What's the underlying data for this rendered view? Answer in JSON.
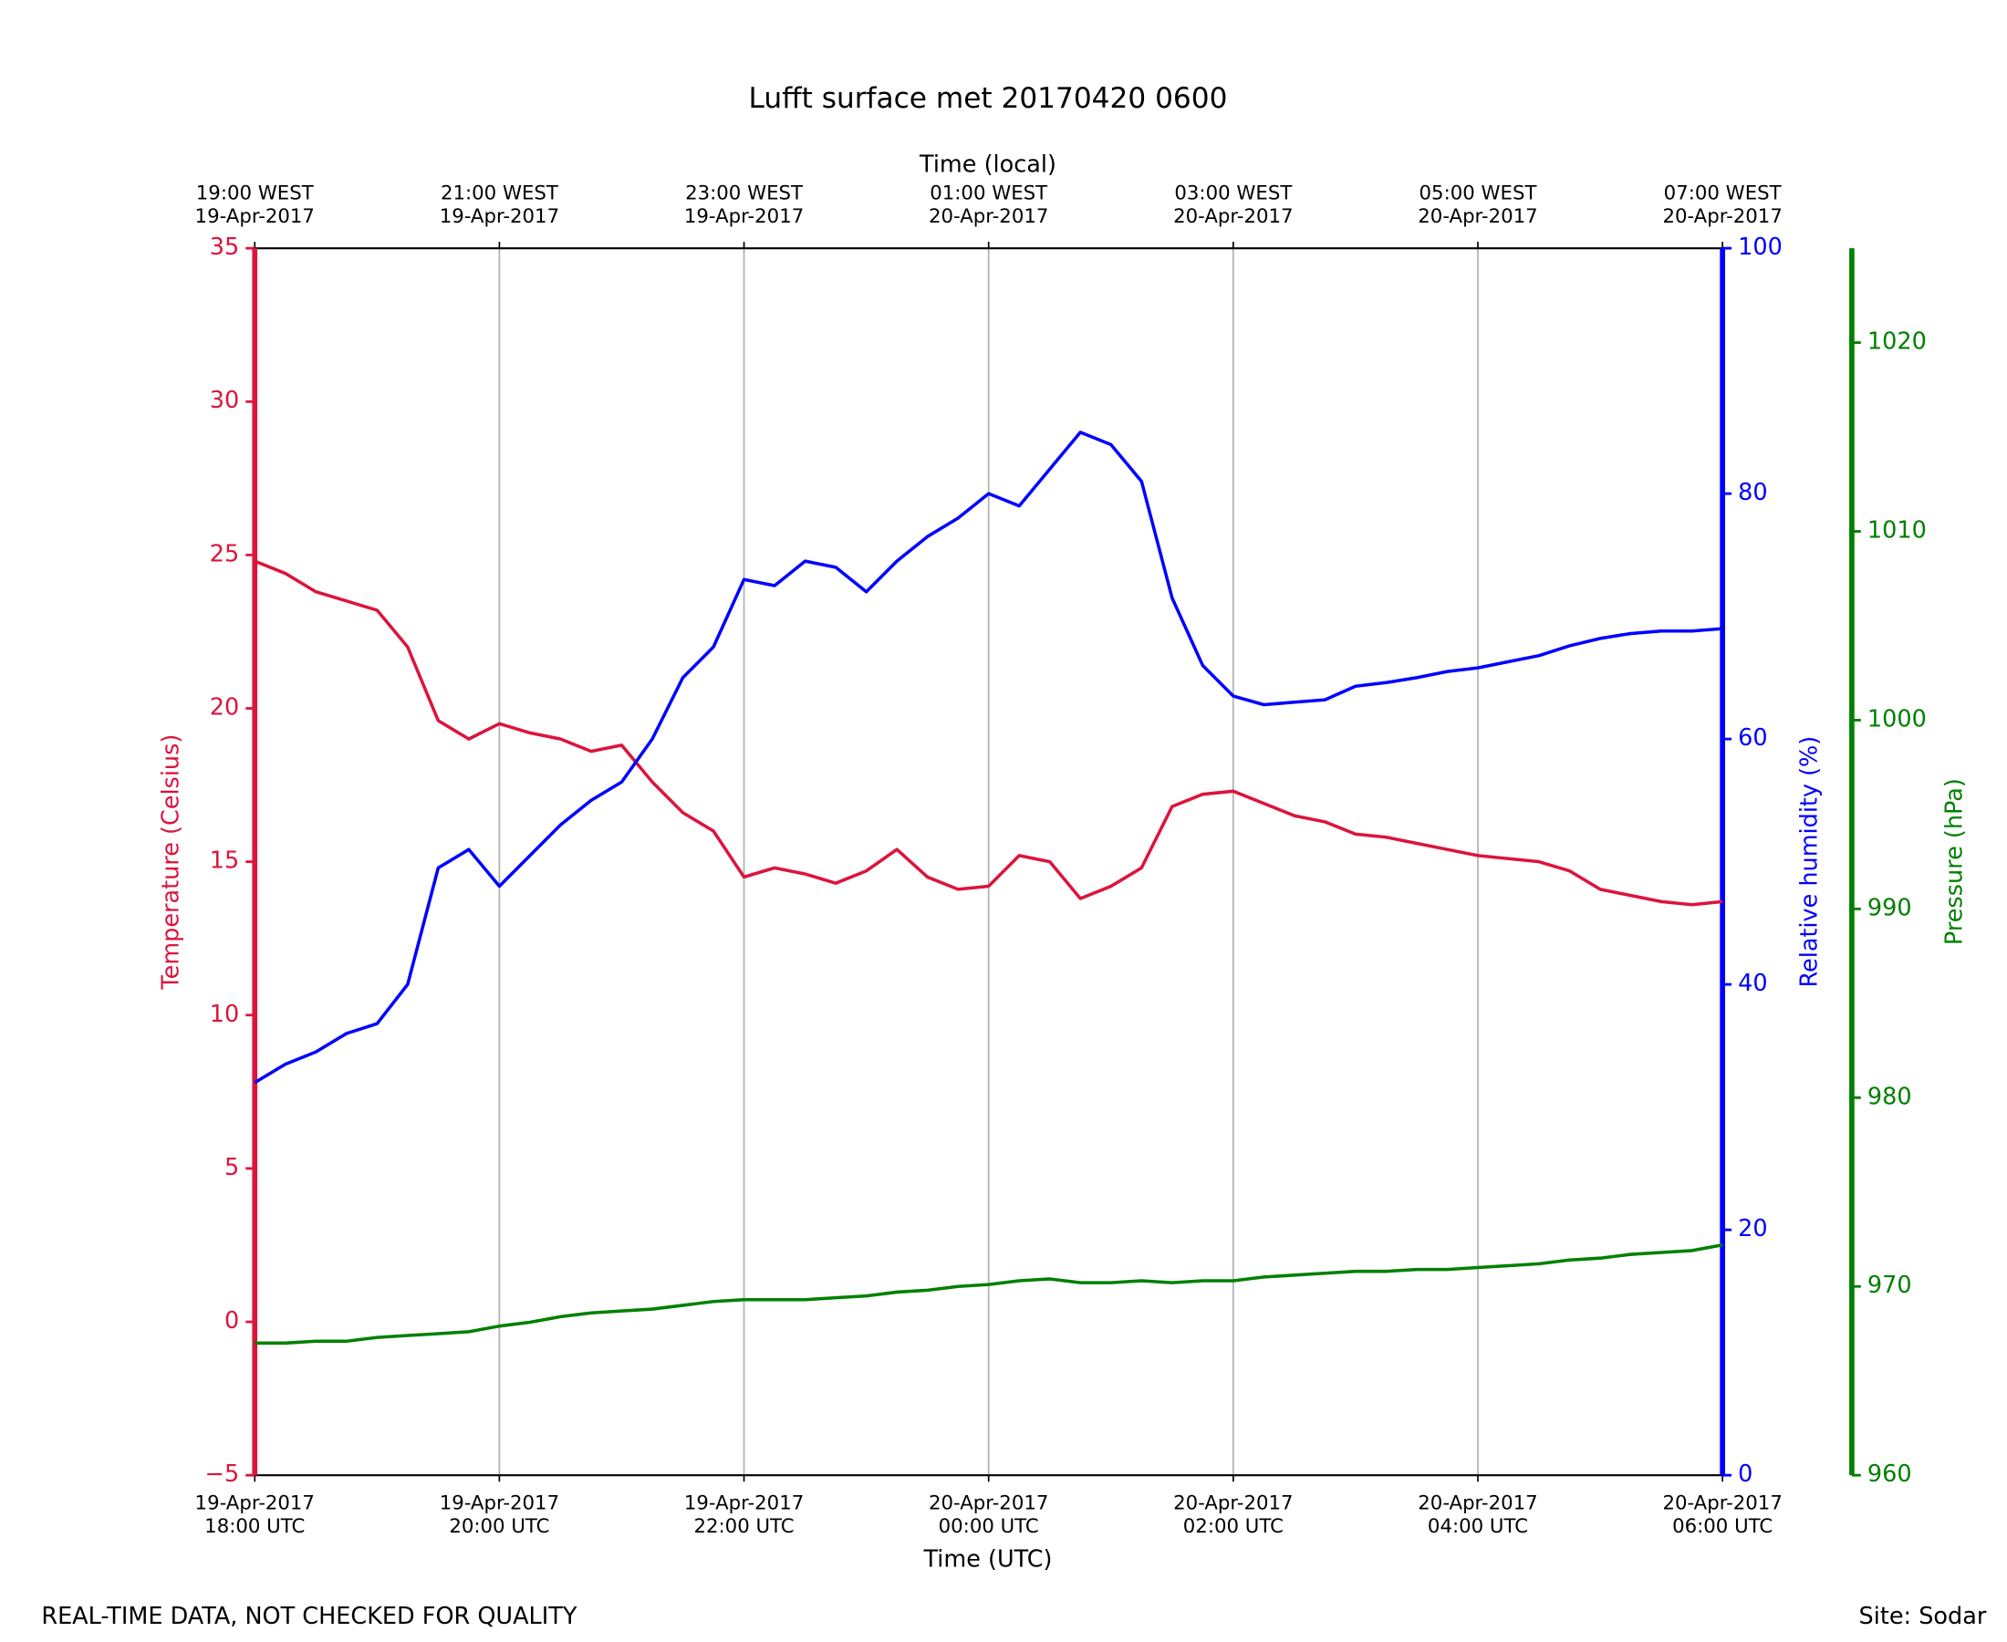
{
  "chart_data": {
    "type": "line",
    "title": "Lufft surface met 20170420 0600",
    "xlabel": "Time (UTC)",
    "x2label": "Time (local)",
    "ylabel": "Temperature (Celsius)",
    "y2label": "Relative humidity (%)",
    "y3label": "Pressure (hPa)",
    "footer_left": "REAL-TIME DATA, NOT CHECKED FOR QUALITY",
    "footer_right": "Site: Sodar",
    "grid": true,
    "x": [
      "2017-04-19T18:00Z",
      "2017-04-19T18:15Z",
      "2017-04-19T18:30Z",
      "2017-04-19T18:45Z",
      "2017-04-19T19:00Z",
      "2017-04-19T19:15Z",
      "2017-04-19T19:30Z",
      "2017-04-19T19:45Z",
      "2017-04-19T20:00Z",
      "2017-04-19T20:15Z",
      "2017-04-19T20:30Z",
      "2017-04-19T20:45Z",
      "2017-04-19T21:00Z",
      "2017-04-19T21:15Z",
      "2017-04-19T21:30Z",
      "2017-04-19T21:45Z",
      "2017-04-19T22:00Z",
      "2017-04-19T22:15Z",
      "2017-04-19T22:30Z",
      "2017-04-19T22:45Z",
      "2017-04-19T23:00Z",
      "2017-04-19T23:15Z",
      "2017-04-19T23:30Z",
      "2017-04-19T23:45Z",
      "2017-04-20T00:00Z",
      "2017-04-20T00:15Z",
      "2017-04-20T00:30Z",
      "2017-04-20T00:45Z",
      "2017-04-20T01:00Z",
      "2017-04-20T01:15Z",
      "2017-04-20T01:30Z",
      "2017-04-20T01:45Z",
      "2017-04-20T02:00Z",
      "2017-04-20T02:15Z",
      "2017-04-20T02:30Z",
      "2017-04-20T02:45Z",
      "2017-04-20T03:00Z",
      "2017-04-20T03:15Z",
      "2017-04-20T03:30Z",
      "2017-04-20T03:45Z",
      "2017-04-20T04:00Z",
      "2017-04-20T04:15Z",
      "2017-04-20T04:30Z",
      "2017-04-20T04:45Z",
      "2017-04-20T05:00Z",
      "2017-04-20T05:15Z",
      "2017-04-20T05:30Z",
      "2017-04-20T05:45Z",
      "2017-04-20T06:00Z"
    ],
    "xlim": [
      "2017-04-19T18:00Z",
      "2017-04-20T06:00Z"
    ],
    "xticks": [
      {
        "value": "2017-04-19T18:00Z",
        "label": "19-Apr-2017\n18:00 UTC"
      },
      {
        "value": "2017-04-19T20:00Z",
        "label": "19-Apr-2017\n20:00 UTC"
      },
      {
        "value": "2017-04-19T22:00Z",
        "label": "19-Apr-2017\n22:00 UTC"
      },
      {
        "value": "2017-04-20T00:00Z",
        "label": "20-Apr-2017\n00:00 UTC"
      },
      {
        "value": "2017-04-20T02:00Z",
        "label": "20-Apr-2017\n02:00 UTC"
      },
      {
        "value": "2017-04-20T04:00Z",
        "label": "20-Apr-2017\n04:00 UTC"
      },
      {
        "value": "2017-04-20T06:00Z",
        "label": "20-Apr-2017\n06:00 UTC"
      }
    ],
    "x2ticks": [
      {
        "value": "2017-04-19T18:00Z",
        "label": "19:00 WEST\n19-Apr-2017"
      },
      {
        "value": "2017-04-19T20:00Z",
        "label": "21:00 WEST\n19-Apr-2017"
      },
      {
        "value": "2017-04-19T22:00Z",
        "label": "23:00 WEST\n19-Apr-2017"
      },
      {
        "value": "2017-04-20T00:00Z",
        "label": "01:00 WEST\n20-Apr-2017"
      },
      {
        "value": "2017-04-20T02:00Z",
        "label": "03:00 WEST\n20-Apr-2017"
      },
      {
        "value": "2017-04-20T04:00Z",
        "label": "05:00 WEST\n20-Apr-2017"
      },
      {
        "value": "2017-04-20T06:00Z",
        "label": "07:00 WEST\n20-Apr-2017"
      }
    ],
    "ylim": [
      -5,
      35
    ],
    "yticks": [
      {
        "value": -5,
        "label": "−5"
      },
      0,
      5,
      10,
      15,
      20,
      25,
      30,
      35
    ],
    "y2lim": [
      0,
      100
    ],
    "y2ticks": [
      0,
      20,
      40,
      60,
      80,
      100
    ],
    "y3lim": [
      960,
      1025
    ],
    "y3ticks": [
      960,
      970,
      980,
      990,
      1000,
      1010,
      1020
    ],
    "ycolor": "#dc143c",
    "y2color": "#0000ff",
    "y3color": "#008000",
    "series": [
      {
        "name": "Temperature",
        "color": "#dc143c",
        "axis": "y",
        "values": [
          24.8,
          24.4,
          23.8,
          23.5,
          23.2,
          22.0,
          19.6,
          19.0,
          19.5,
          19.2,
          19.0,
          18.6,
          18.8,
          17.6,
          16.6,
          16.0,
          14.5,
          14.8,
          14.6,
          14.3,
          14.7,
          15.4,
          14.5,
          14.1,
          14.2,
          15.2,
          15.0,
          13.8,
          14.2,
          14.8,
          16.8,
          17.2,
          17.3,
          16.9,
          16.5,
          16.3,
          15.9,
          15.8,
          15.6,
          15.4,
          15.2,
          15.1,
          15.0,
          14.7,
          14.1,
          13.9,
          13.7,
          13.6,
          13.7
        ]
      },
      {
        "name": "Relative humidity",
        "color": "#0000ff",
        "axis": "y2",
        "values": [
          32,
          33.5,
          34.5,
          36,
          36.8,
          40,
          49.5,
          51,
          48,
          50.5,
          53,
          55,
          56.5,
          60,
          65,
          67.5,
          73,
          72.5,
          74.5,
          74,
          72,
          74.5,
          76.5,
          78,
          80,
          79,
          82,
          85,
          84,
          81,
          71.5,
          66,
          63.5,
          62.8,
          63,
          63.2,
          64.3,
          64.6,
          65,
          65.5,
          65.8,
          66.3,
          66.8,
          67.6,
          68.2,
          68.6,
          68.8,
          68.8,
          69
        ]
      },
      {
        "name": "Pressure",
        "color": "#008000",
        "axis": "y3",
        "values": [
          967.0,
          967.0,
          967.1,
          967.1,
          967.3,
          967.4,
          967.5,
          967.6,
          967.9,
          968.1,
          968.4,
          968.6,
          968.7,
          968.8,
          969.0,
          969.2,
          969.3,
          969.3,
          969.3,
          969.4,
          969.5,
          969.7,
          969.8,
          970.0,
          970.1,
          970.3,
          970.4,
          970.2,
          970.2,
          970.3,
          970.2,
          970.3,
          970.3,
          970.5,
          970.6,
          970.7,
          970.8,
          970.8,
          970.9,
          970.9,
          971.0,
          971.1,
          971.2,
          971.4,
          971.5,
          971.7,
          971.8,
          971.9,
          972.2
        ]
      }
    ]
  }
}
